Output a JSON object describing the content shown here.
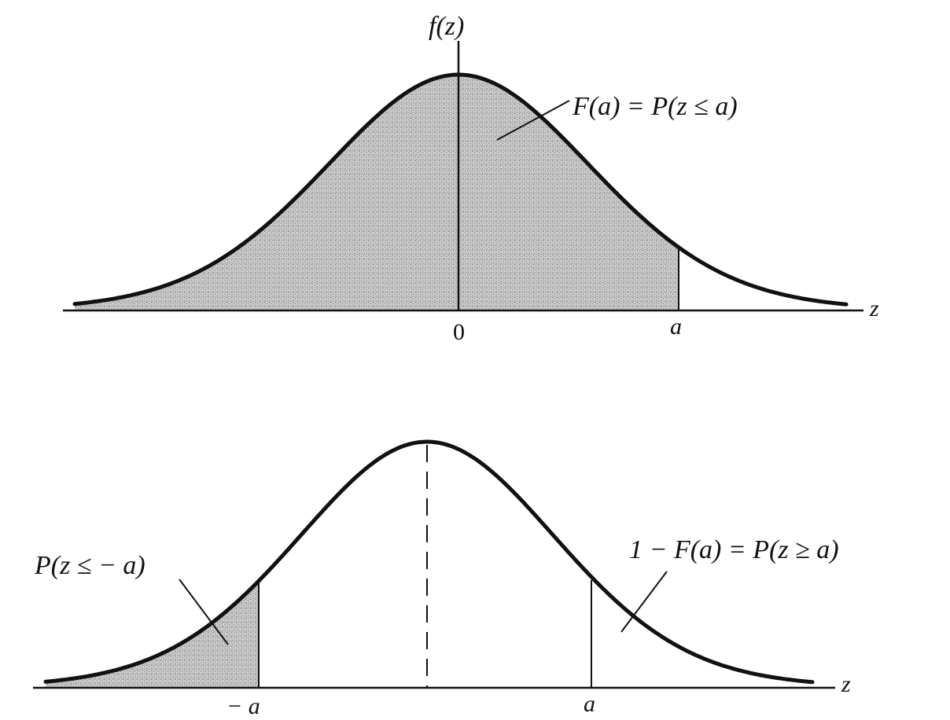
{
  "top_panel": {
    "y_axis_label": "f(z)",
    "x_axis_label": "z",
    "tick_zero": "0",
    "tick_a": "a",
    "area_label": "F(a) = P(z ≤ a)"
  },
  "bottom_panel": {
    "x_axis_label": "z",
    "tick_neg_a": "− a",
    "tick_a": "a",
    "left_tail_label": "P(z ≤ − a)",
    "right_tail_label": "1 − F(a) = P(z ≥ a)"
  },
  "colors": {
    "ink": "#111111",
    "shade": "#bdbdbd"
  }
}
